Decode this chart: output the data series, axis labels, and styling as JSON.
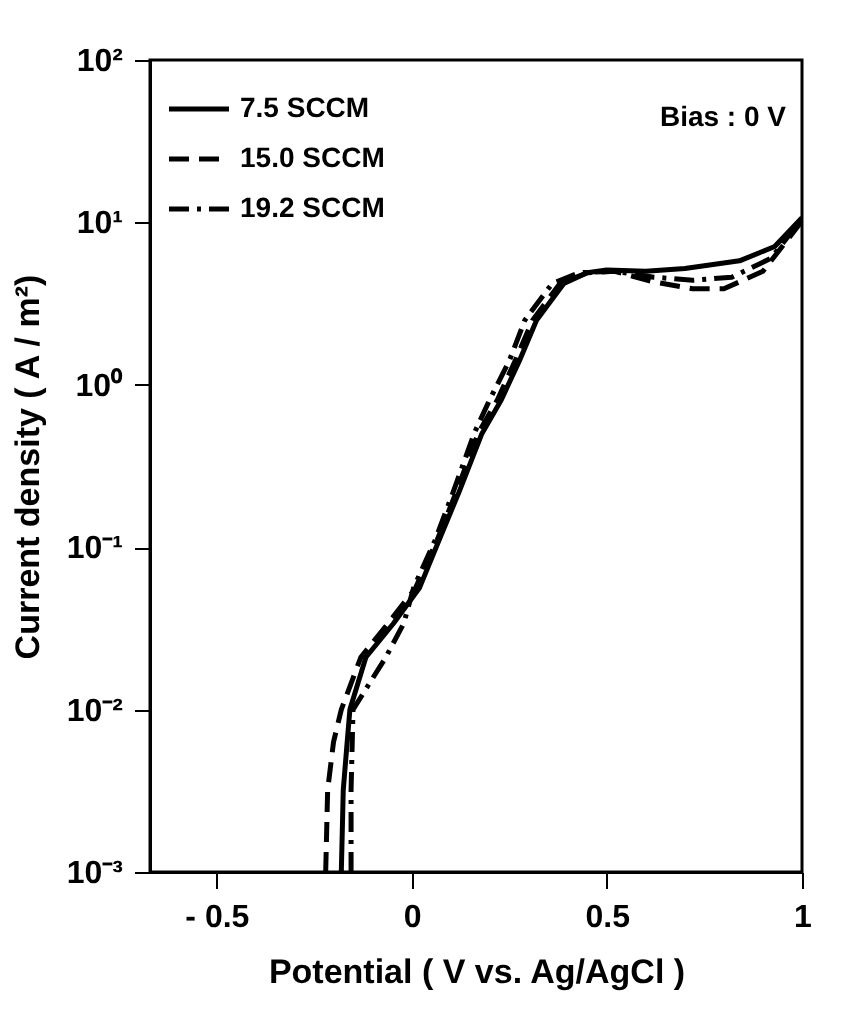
{
  "chart_data": {
    "type": "line",
    "xlabel": "Potential ( V vs. Ag/AgCl )",
    "ylabel": "Current density  ( A / m²)",
    "log": "y",
    "xlim": [
      -0.67,
      1.0
    ],
    "ylim": [
      0.001,
      100
    ],
    "xticks": [
      {
        "value": -0.5,
        "label": "- 0.5"
      },
      0,
      0.5,
      1
    ],
    "yticks": [
      {
        "value": 0.001,
        "label": "10⁻³"
      },
      {
        "value": 0.01,
        "label": "10⁻²"
      },
      {
        "value": 0.1,
        "label": "10⁻¹"
      },
      {
        "value": 1,
        "label": "10⁰"
      },
      {
        "value": 10,
        "label": "10¹"
      },
      {
        "value": 100,
        "label": "10²"
      }
    ],
    "grid": false,
    "legend": "top left",
    "marker": "none",
    "annotations": [
      "Bias : 0 V"
    ],
    "series": [
      {
        "name": "7.5 SCCM",
        "color": "#000000",
        "line_style": "solid",
        "x": [
          -0.18,
          -0.175,
          -0.165,
          -0.158,
          -0.117,
          -0.046,
          0.02,
          0.07,
          0.122,
          0.18,
          0.23,
          0.276,
          0.32,
          0.39,
          0.45,
          0.5,
          0.6,
          0.7,
          0.84,
          0.93,
          1.0
        ],
        "values": [
          0.001,
          0.0032,
          0.0063,
          0.01,
          0.021,
          0.034,
          0.056,
          0.11,
          0.22,
          0.5,
          0.81,
          1.4,
          2.5,
          4.2,
          4.9,
          5.1,
          5.0,
          5.2,
          5.8,
          7.1,
          10.7
        ]
      },
      {
        "name": "15.0 SCCM",
        "color": "#000000",
        "line_style": "dashed",
        "x": [
          -0.22,
          -0.215,
          -0.2,
          -0.18,
          -0.13,
          -0.06,
          0.01,
          0.065,
          0.115,
          0.17,
          0.22,
          0.265,
          0.31,
          0.38,
          0.45,
          0.52,
          0.62,
          0.72,
          0.8,
          0.9,
          1.0
        ],
        "values": [
          0.001,
          0.0032,
          0.0063,
          0.01,
          0.021,
          0.034,
          0.056,
          0.11,
          0.22,
          0.5,
          0.81,
          1.4,
          2.5,
          4.2,
          4.9,
          5.0,
          4.3,
          3.9,
          3.9,
          5.0,
          10.2
        ]
      },
      {
        "name": "19.2 SCCM",
        "color": "#000000",
        "line_style": "dashdot",
        "x": [
          -0.155,
          -0.155,
          -0.152,
          -0.15,
          -0.066,
          -0.02,
          0.005,
          0.06,
          0.107,
          0.16,
          0.2,
          0.25,
          0.29,
          0.36,
          0.43,
          0.52,
          0.62,
          0.72,
          0.82,
          0.92,
          1.0
        ],
        "values": [
          0.001,
          0.0032,
          0.0063,
          0.01,
          0.021,
          0.034,
          0.056,
          0.11,
          0.22,
          0.5,
          0.81,
          1.4,
          2.5,
          4.2,
          4.9,
          5.0,
          4.6,
          4.4,
          4.6,
          6.0,
          10.5
        ]
      }
    ]
  }
}
